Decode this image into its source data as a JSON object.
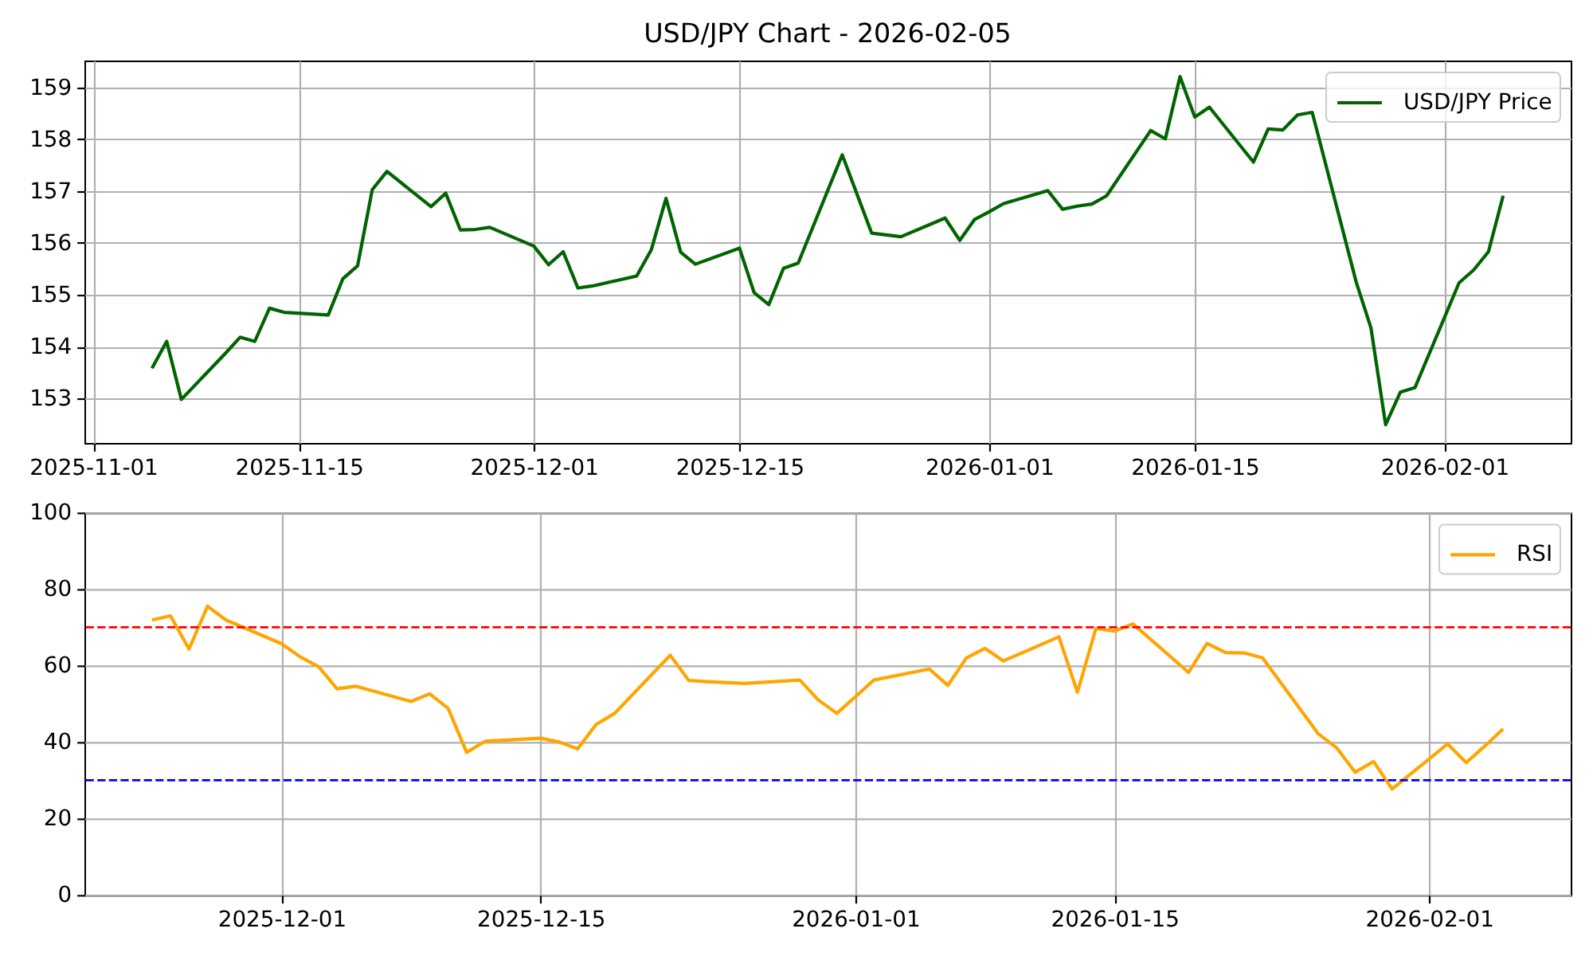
{
  "chart_data": [
    {
      "type": "line",
      "title": "USD/JPY Chart - 2026-02-05",
      "x": [
        "2025-11-05",
        "2025-11-06",
        "2025-11-07",
        "2025-11-10",
        "2025-11-11",
        "2025-11-12",
        "2025-11-13",
        "2025-11-14",
        "2025-11-17",
        "2025-11-18",
        "2025-11-19",
        "2025-11-20",
        "2025-11-21",
        "2025-11-24",
        "2025-11-25",
        "2025-11-26",
        "2025-11-27",
        "2025-11-28",
        "2025-12-01",
        "2025-12-02",
        "2025-12-03",
        "2025-12-04",
        "2025-12-05",
        "2025-12-08",
        "2025-12-09",
        "2025-12-10",
        "2025-12-11",
        "2025-12-12",
        "2025-12-15",
        "2025-12-16",
        "2025-12-17",
        "2025-12-18",
        "2025-12-19",
        "2025-12-22",
        "2025-12-24",
        "2025-12-26",
        "2025-12-29",
        "2025-12-30",
        "2025-12-31",
        "2026-01-01",
        "2026-01-02",
        "2026-01-05",
        "2026-01-06",
        "2026-01-07",
        "2026-01-08",
        "2026-01-09",
        "2026-01-12",
        "2026-01-13",
        "2026-01-14",
        "2026-01-15",
        "2026-01-16",
        "2026-01-19",
        "2026-01-20",
        "2026-01-21",
        "2026-01-22",
        "2026-01-23",
        "2026-01-26",
        "2026-01-27",
        "2026-01-28",
        "2026-01-29",
        "2026-01-30",
        "2026-02-02",
        "2026-02-03",
        "2026-02-04",
        "2026-02-05"
      ],
      "series": [
        {
          "name": "USD/JPY Price",
          "color": "#006400",
          "values": [
            153.58,
            154.1,
            152.98,
            153.87,
            154.18,
            154.1,
            154.74,
            154.66,
            154.61,
            155.31,
            155.56,
            157.03,
            157.38,
            156.7,
            156.96,
            156.25,
            156.26,
            156.3,
            155.94,
            155.58,
            155.83,
            155.13,
            155.17,
            155.36,
            155.87,
            156.86,
            155.82,
            155.59,
            155.9,
            155.04,
            154.81,
            155.51,
            155.61,
            157.7,
            156.19,
            156.12,
            156.48,
            156.05,
            156.45,
            156.6,
            156.76,
            157.01,
            156.65,
            156.71,
            156.75,
            156.91,
            158.17,
            158.01,
            159.21,
            158.43,
            158.62,
            157.56,
            158.2,
            158.18,
            158.47,
            158.52,
            155.24,
            154.36,
            152.49,
            153.12,
            153.21,
            155.23,
            155.48,
            155.83,
            156.91
          ]
        }
      ],
      "xlim": [
        "2025-10-31T09:36",
        "2026-02-09T14:24"
      ],
      "xticks": [
        "2025-11-01",
        "2025-11-15",
        "2025-12-01",
        "2025-12-15",
        "2026-01-01",
        "2026-01-15",
        "2026-02-01"
      ],
      "ylim": [
        152.14,
        159.52
      ],
      "yticks": [
        153,
        154,
        155,
        156,
        157,
        158,
        159
      ],
      "grid": true,
      "legend": "top right",
      "line_style": "solid"
    },
    {
      "type": "line",
      "x": [
        "2025-11-24",
        "2025-11-25",
        "2025-11-26",
        "2025-11-27",
        "2025-11-28",
        "2025-12-01",
        "2025-12-02",
        "2025-12-03",
        "2025-12-04",
        "2025-12-05",
        "2025-12-08",
        "2025-12-09",
        "2025-12-10",
        "2025-12-11",
        "2025-12-12",
        "2025-12-15",
        "2025-12-16",
        "2025-12-17",
        "2025-12-18",
        "2025-12-19",
        "2025-12-22",
        "2025-12-23",
        "2025-12-24",
        "2025-12-26",
        "2025-12-29",
        "2025-12-30",
        "2025-12-31",
        "2026-01-01",
        "2026-01-02",
        "2026-01-05",
        "2026-01-06",
        "2026-01-07",
        "2026-01-08",
        "2026-01-09",
        "2026-01-12",
        "2026-01-13",
        "2026-01-14",
        "2026-01-15",
        "2026-01-16",
        "2026-01-19",
        "2026-01-20",
        "2026-01-21",
        "2026-01-22",
        "2026-01-23",
        "2026-01-26",
        "2026-01-27",
        "2026-01-28",
        "2026-01-29",
        "2026-01-30",
        "2026-02-02",
        "2026-02-03",
        "2026-02-04",
        "2026-02-05"
      ],
      "series": [
        {
          "name": "RSI",
          "color": "#ffa500",
          "values": [
            71.9,
            73.0,
            64.3,
            75.5,
            71.9,
            65.7,
            62.3,
            59.7,
            53.9,
            54.6,
            50.6,
            52.6,
            48.8,
            37.3,
            40.2,
            41.0,
            40.0,
            38.2,
            44.6,
            47.5,
            62.7,
            56.1,
            55.8,
            55.3,
            56.2,
            51.0,
            47.5,
            51.8,
            56.2,
            59.1,
            54.8,
            62.0,
            64.5,
            61.2,
            67.5,
            53.0,
            69.7,
            69.0,
            70.9,
            58.2,
            65.8,
            63.4,
            63.3,
            62.0,
            42.2,
            38.5,
            32.1,
            34.9,
            27.7,
            39.5,
            34.6,
            38.9,
            43.4
          ]
        }
      ],
      "xlim": [
        "2025-11-20T08:24",
        "2026-02-08T15:36"
      ],
      "xticks": [
        "2025-12-01",
        "2025-12-15",
        "2026-01-01",
        "2026-01-15",
        "2026-02-01"
      ],
      "ylim": [
        0,
        100
      ],
      "yticks": [
        0,
        20,
        40,
        60,
        80,
        100
      ],
      "grid": true,
      "legend": "top right",
      "line_style": "solid",
      "ref_lines": [
        {
          "axis": "y",
          "value": 70,
          "color": "#ff0000",
          "line_style": "dashed"
        },
        {
          "axis": "y",
          "value": 30,
          "color": "#0000ff",
          "line_style": "dashed"
        }
      ]
    }
  ]
}
